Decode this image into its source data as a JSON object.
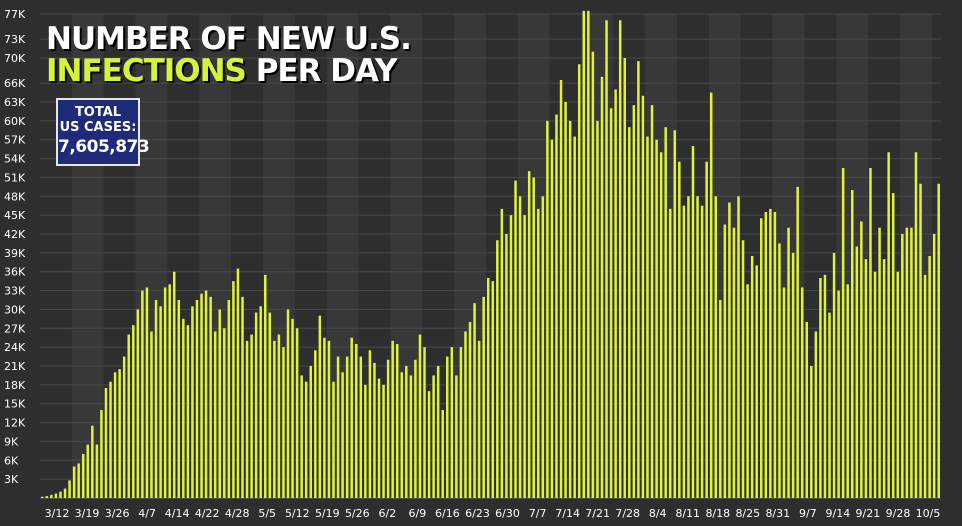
{
  "title": {
    "line1": "NUMBER OF NEW U.S.",
    "line2_highlight": "INFECTIONS",
    "line2_rest": "PER DAY"
  },
  "total_box": {
    "label_line1": "TOTAL",
    "label_line2": "US CASES:",
    "value": "7,605,873"
  },
  "colors": {
    "background": "#2e2e2e",
    "band_alt": "#383838",
    "bar": "#dff23c",
    "title_highlight": "#d8f23a",
    "box": "#1f2a78"
  },
  "chart_data": {
    "type": "bar",
    "title": "NUMBER OF NEW U.S. INFECTIONS PER DAY",
    "xlabel": "",
    "ylabel": "",
    "ylim": [
      0,
      77000
    ],
    "y_ticks": [
      3000,
      6000,
      9000,
      12000,
      15000,
      18000,
      21000,
      24000,
      27000,
      30000,
      33000,
      36000,
      39000,
      42000,
      45000,
      48000,
      51000,
      54000,
      57000,
      60000,
      63000,
      66000,
      70000,
      73000,
      77000
    ],
    "y_tick_labels": [
      "3K",
      "6K",
      "9K",
      "12K",
      "15K",
      "18K",
      "21K",
      "24K",
      "27K",
      "30K",
      "33K",
      "36K",
      "39K",
      "42K",
      "45K",
      "48K",
      "51K",
      "54K",
      "57K",
      "60K",
      "63K",
      "66K",
      "70K",
      "73K",
      "77K"
    ],
    "x_tick_labels": [
      "3/12",
      "3/19",
      "3/26",
      "4/7",
      "4/14",
      "4/22",
      "4/28",
      "5/5",
      "5/12",
      "5/19",
      "5/26",
      "6/2",
      "6/9",
      "6/16",
      "6/23",
      "6/30",
      "7/7",
      "7/14",
      "7/21",
      "7/28",
      "8/4",
      "8/11",
      "8/18",
      "8/25",
      "8/31",
      "9/7",
      "9/14",
      "9/21",
      "9/28",
      "10/5"
    ],
    "grid": true,
    "legend": "none",
    "values": [
      200,
      300,
      500,
      700,
      1000,
      1500,
      2800,
      5000,
      5500,
      7000,
      8500,
      11500,
      8500,
      14000,
      17500,
      18500,
      20000,
      20500,
      22500,
      26000,
      27500,
      30000,
      33000,
      33500,
      26500,
      31500,
      30500,
      33500,
      34000,
      36000,
      31500,
      28500,
      27500,
      30500,
      31500,
      32500,
      33000,
      32000,
      26500,
      30000,
      27000,
      31500,
      34500,
      36500,
      32000,
      25000,
      26000,
      29500,
      30500,
      35500,
      29500,
      25000,
      26000,
      24000,
      30000,
      28500,
      27000,
      19500,
      18500,
      21000,
      23500,
      29000,
      25500,
      25000,
      18500,
      22500,
      20000,
      22500,
      25500,
      24500,
      22500,
      18000,
      23500,
      21500,
      19000,
      18000,
      22000,
      25000,
      24500,
      20000,
      21000,
      19500,
      22000,
      26000,
      24000,
      17000,
      19500,
      21000,
      14000,
      22500,
      24000,
      19500,
      24000,
      26500,
      28000,
      31000,
      25000,
      32000,
      35000,
      34500,
      41000,
      46000,
      42000,
      45000,
      50500,
      48000,
      45000,
      52000,
      51000,
      46000,
      48000,
      60000,
      57000,
      61000,
      66500,
      63000,
      60000,
      57500,
      69000,
      77500,
      77500,
      71000,
      60000,
      67000,
      76000,
      62000,
      65000,
      76000,
      70000,
      59000,
      62500,
      69500,
      64000,
      57500,
      62500,
      57000,
      55000,
      59000,
      46000,
      58500,
      53500,
      46500,
      48000,
      56000,
      48000,
      46500,
      53500,
      64500,
      48000,
      31500,
      43500,
      47000,
      43000,
      48000,
      41000,
      34000,
      38500,
      37000,
      44500,
      45500,
      46000,
      45500,
      40500,
      33500,
      43000,
      39000,
      49500,
      33500,
      28000,
      21000,
      26500,
      35000,
      35500,
      29500,
      39000,
      33000,
      52500,
      34000,
      49000,
      40000,
      44000,
      38000,
      52500,
      36000,
      43000,
      38000,
      55000,
      48500,
      36000,
      42000,
      43000,
      43000,
      55000,
      50000,
      35500,
      38500,
      42000,
      50000
    ]
  }
}
